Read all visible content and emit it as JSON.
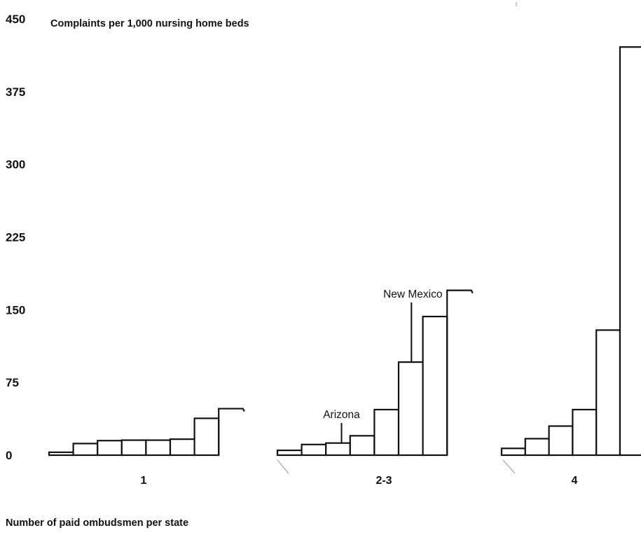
{
  "chart_data": {
    "type": "bar",
    "title": "Complaints per 1,000 nursing home beds",
    "xlabel": "Number of paid ombudsmen per state",
    "ylabel": "",
    "ylim": [
      0,
      450
    ],
    "yticks": [
      0,
      75,
      150,
      225,
      300,
      375,
      450
    ],
    "grid": false,
    "groups": [
      {
        "label": "1",
        "values": [
          3,
          12,
          15,
          15.5,
          15.5,
          16.5,
          38,
          48
        ]
      },
      {
        "label": "2-3",
        "values": [
          5,
          11,
          12.5,
          20,
          47,
          96,
          143,
          170
        ]
      },
      {
        "label": "4",
        "values": [
          7,
          17,
          30,
          47,
          129,
          421
        ]
      }
    ],
    "annotations": [
      {
        "text": "Arizona",
        "group": 1,
        "bar": 2
      },
      {
        "text": "New Mexico",
        "group": 1,
        "bar": 5
      }
    ]
  }
}
